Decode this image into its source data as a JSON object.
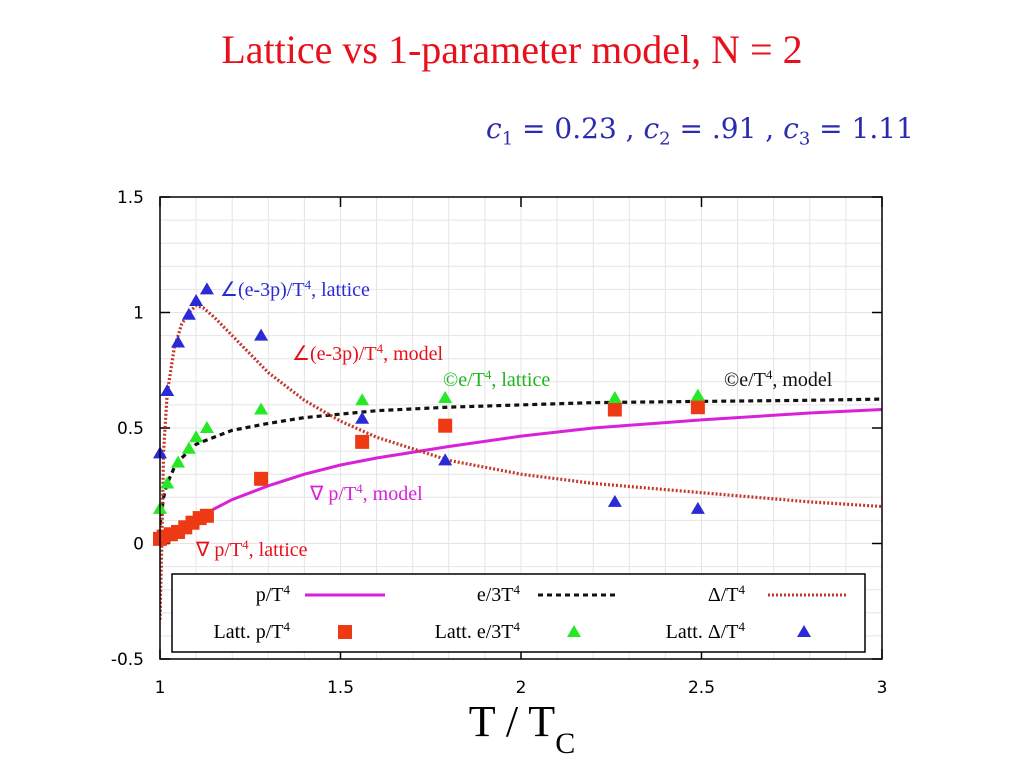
{
  "title": "Lattice vs 1-parameter model, N = 2",
  "params": {
    "c1_label": "c",
    "c1_sub": "1",
    "c1_value": "= 0.23 ,",
    "c2_label": "c",
    "c2_sub": "2",
    "c2_value": "= .91 ,",
    "c3_label": "c",
    "c3_sub": "3",
    "c3_value": "= 1.11"
  },
  "colors": {
    "title": "#e8101a",
    "params": "#2b2bb0",
    "p_series": "#d822d8",
    "e_series": "#111111",
    "delta_series": "#c0392b",
    "latt_p": "#ee3a14",
    "latt_e": "#27e827",
    "latt_delta": "#2a2ad6"
  },
  "chart_data": {
    "type": "scatter",
    "xlabel": "T / T",
    "xlabel_sub": "C",
    "xlim": [
      1,
      3
    ],
    "ylim": [
      -0.5,
      1.5
    ],
    "x_ticks": [
      "1",
      "1.5",
      "2",
      "2.5",
      "3"
    ],
    "y_ticks": [
      "-0.5",
      "0",
      "0.5",
      "1",
      "1.5"
    ],
    "grid": true,
    "legend_position": "bottom",
    "lines": [
      {
        "name": "p/T4",
        "label": "p/T",
        "sup": "4",
        "style": "solid",
        "color": "#d822d8",
        "x": [
          1.0,
          1.02,
          1.05,
          1.08,
          1.1,
          1.15,
          1.2,
          1.3,
          1.4,
          1.5,
          1.6,
          1.8,
          2.0,
          2.2,
          2.5,
          2.8,
          3.0
        ],
        "y": [
          0.02,
          0.04,
          0.06,
          0.08,
          0.095,
          0.15,
          0.19,
          0.25,
          0.3,
          0.34,
          0.37,
          0.42,
          0.465,
          0.5,
          0.535,
          0.565,
          0.58
        ]
      },
      {
        "name": "e/3T4",
        "label": "e/3T",
        "sup": "4",
        "style": "dashed",
        "color": "#111111",
        "x": [
          1.0,
          1.01,
          1.02,
          1.04,
          1.06,
          1.08,
          1.1,
          1.15,
          1.2,
          1.3,
          1.4,
          1.5,
          1.6,
          1.8,
          2.0,
          2.2,
          2.5,
          2.8,
          3.0
        ],
        "y": [
          0.08,
          0.2,
          0.26,
          0.33,
          0.37,
          0.4,
          0.43,
          0.46,
          0.49,
          0.52,
          0.545,
          0.56,
          0.575,
          0.59,
          0.6,
          0.61,
          0.615,
          0.62,
          0.625
        ]
      },
      {
        "name": "Δ/T4",
        "label": "Δ/T",
        "sup": "4",
        "style": "dotted",
        "color": "#c0392b",
        "x": [
          1.0,
          1.005,
          1.01,
          1.02,
          1.04,
          1.06,
          1.08,
          1.1,
          1.12,
          1.15,
          1.2,
          1.3,
          1.4,
          1.5,
          1.6,
          1.8,
          2.0,
          2.2,
          2.5,
          2.8,
          3.0
        ],
        "y": [
          -0.33,
          0.0,
          0.4,
          0.65,
          0.85,
          0.95,
          1.0,
          1.03,
          1.02,
          0.98,
          0.9,
          0.74,
          0.62,
          0.53,
          0.46,
          0.36,
          0.3,
          0.26,
          0.22,
          0.18,
          0.16
        ]
      }
    ],
    "points": [
      {
        "name": "Latt. p/T4",
        "label": "Latt. p/T",
        "sup": "4",
        "marker": "square",
        "color": "#ee3a14",
        "x": [
          1.0,
          1.01,
          1.03,
          1.05,
          1.07,
          1.09,
          1.11,
          1.13,
          1.28,
          1.56,
          1.79,
          2.26,
          2.49
        ],
        "y": [
          0.02,
          0.03,
          0.04,
          0.05,
          0.07,
          0.09,
          0.11,
          0.12,
          0.28,
          0.44,
          0.51,
          0.58,
          0.59
        ]
      },
      {
        "name": "Latt. e/3T4",
        "label": "Latt. e/3T",
        "sup": "4",
        "marker": "triangle",
        "color": "#27e827",
        "x": [
          1.0,
          1.02,
          1.05,
          1.08,
          1.1,
          1.13,
          1.28,
          1.56,
          1.79,
          2.26,
          2.49
        ],
        "y": [
          0.15,
          0.26,
          0.35,
          0.41,
          0.46,
          0.5,
          0.58,
          0.62,
          0.63,
          0.63,
          0.64
        ]
      },
      {
        "name": "Latt. Δ/T4",
        "label": "Latt. Δ/T",
        "sup": "4",
        "marker": "triangle",
        "color": "#2a2ad6",
        "x": [
          1.0,
          1.02,
          1.05,
          1.08,
          1.1,
          1.13,
          1.28,
          1.56,
          1.79,
          2.26,
          2.49
        ],
        "y": [
          0.39,
          0.66,
          0.87,
          0.99,
          1.05,
          1.1,
          0.9,
          0.54,
          0.36,
          0.18,
          0.15
        ]
      }
    ],
    "annotations": [
      {
        "symbol": "∠",
        "text": "(e-3p)/T",
        "sup": "4",
        "tail": ", lattice",
        "color": "#2a2ad6"
      },
      {
        "symbol": "∠",
        "text": "(e-3p)/T",
        "sup": "4",
        "tail": ", model",
        "color": "#e8101a"
      },
      {
        "symbol": "©",
        "text": "e/T",
        "sup": "4",
        "tail": ", lattice",
        "color": "#1fb51f"
      },
      {
        "symbol": "©",
        "text": "e/T",
        "sup": "4",
        "tail": ", model",
        "color": "#111111"
      },
      {
        "symbol": "∇",
        "text": " p/T",
        "sup": "4",
        "tail": ", model",
        "color": "#d822d8"
      },
      {
        "symbol": "∇",
        "text": "  p/T",
        "sup": "4",
        "tail": ", lattice",
        "color": "#e8101a"
      }
    ]
  }
}
